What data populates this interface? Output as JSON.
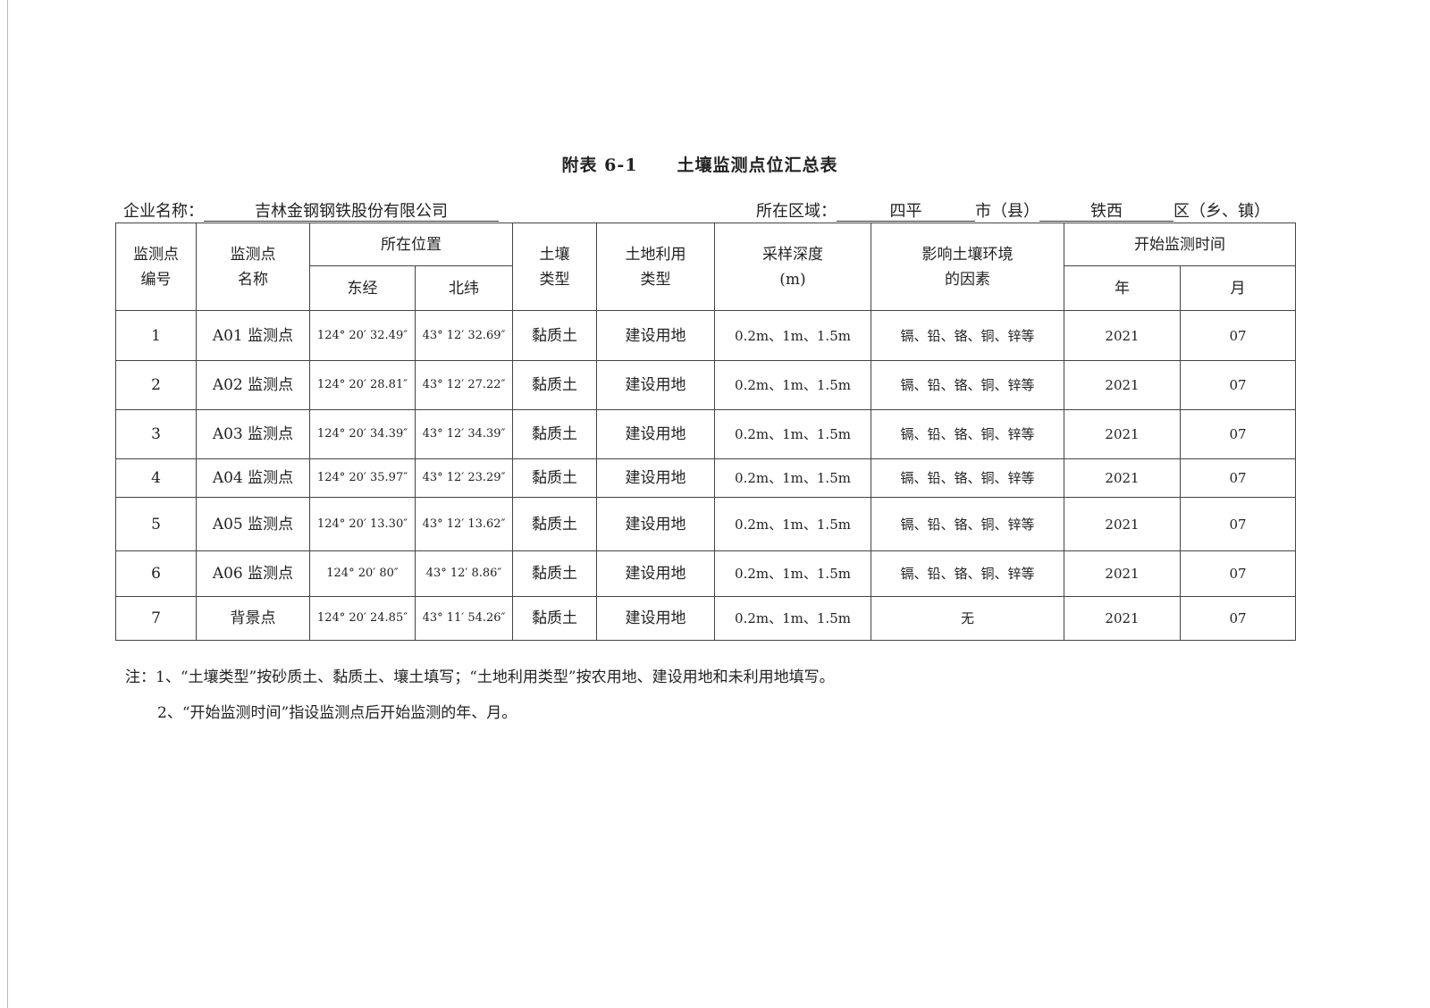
{
  "title": {
    "code": "附表 6-1",
    "name": "土壤监测点位汇总表"
  },
  "enterprise": {
    "label": "企业名称：",
    "value": "吉林金钢钢铁股份有限公司"
  },
  "region": {
    "label": "所在区域：",
    "city": "四平",
    "city_suffix": "市（县）",
    "district": "铁西",
    "district_suffix": "区（乡、镇）"
  },
  "table": {
    "headers": {
      "id": "监测点编号",
      "name": "监测点名称",
      "location": "所在位置",
      "lon": "东经",
      "lat": "北纬",
      "soil": "土壤类型",
      "land": "土地利用类型",
      "depth": "采样深度(m)",
      "factors": "影响土壤环境的因素",
      "start": "开始监测时间",
      "year": "年",
      "month": "月"
    },
    "rows": [
      {
        "id": "1",
        "name": "A01 监测点",
        "lon": "124° 20′ 32.49″",
        "lat": "43° 12′ 32.69″",
        "soil": "黏质土",
        "land": "建设用地",
        "depth": "0.2m、1m、1.5m",
        "factors": "镉、铅、铬、铜、锌等",
        "year": "2021",
        "month": "07"
      },
      {
        "id": "2",
        "name": "A02 监测点",
        "lon": "124° 20′ 28.81″",
        "lat": "43° 12′ 27.22″",
        "soil": "黏质土",
        "land": "建设用地",
        "depth": "0.2m、1m、1.5m",
        "factors": "镉、铅、铬、铜、锌等",
        "year": "2021",
        "month": "07"
      },
      {
        "id": "3",
        "name": "A03 监测点",
        "lon": "124° 20′ 34.39″",
        "lat": "43° 12′ 34.39″",
        "soil": "黏质土",
        "land": "建设用地",
        "depth": "0.2m、1m、1.5m",
        "factors": "镉、铅、铬、铜、锌等",
        "year": "2021",
        "month": "07"
      },
      {
        "id": "4",
        "name": "A04 监测点",
        "lon": "124° 20′ 35.97″",
        "lat": "43° 12′ 23.29″",
        "soil": "黏质土",
        "land": "建设用地",
        "depth": "0.2m、1m、1.5m",
        "factors": "镉、铅、铬、铜、锌等",
        "year": "2021",
        "month": "07"
      },
      {
        "id": "5",
        "name": "A05 监测点",
        "lon": "124° 20′ 13.30″",
        "lat": "43° 12′ 13.62″",
        "soil": "黏质土",
        "land": "建设用地",
        "depth": "0.2m、1m、1.5m",
        "factors": "镉、铅、铬、铜、锌等",
        "year": "2021",
        "month": "07"
      },
      {
        "id": "6",
        "name": "A06 监测点",
        "lon": "124° 20′ 80″",
        "lat": "43° 12′ 8.86″",
        "soil": "黏质土",
        "land": "建设用地",
        "depth": "0.2m、1m、1.5m",
        "factors": "镉、铅、铬、铜、锌等",
        "year": "2021",
        "month": "07"
      },
      {
        "id": "7",
        "name": "背景点",
        "lon": "124° 20′ 24.85″",
        "lat": "43° 11′ 54.26″",
        "soil": "黏质土",
        "land": "建设用地",
        "depth": "0.2m、1m、1.5m",
        "factors": "无",
        "year": "2021",
        "month": "07"
      }
    ]
  },
  "notes": [
    "注：1、“土壤类型”按砂质土、黏质土、壤土填写；“土地利用类型”按农用地、建设用地和未利用地填写。",
    "2、“开始监测时间”指设监测点后开始监测的年、月。"
  ]
}
